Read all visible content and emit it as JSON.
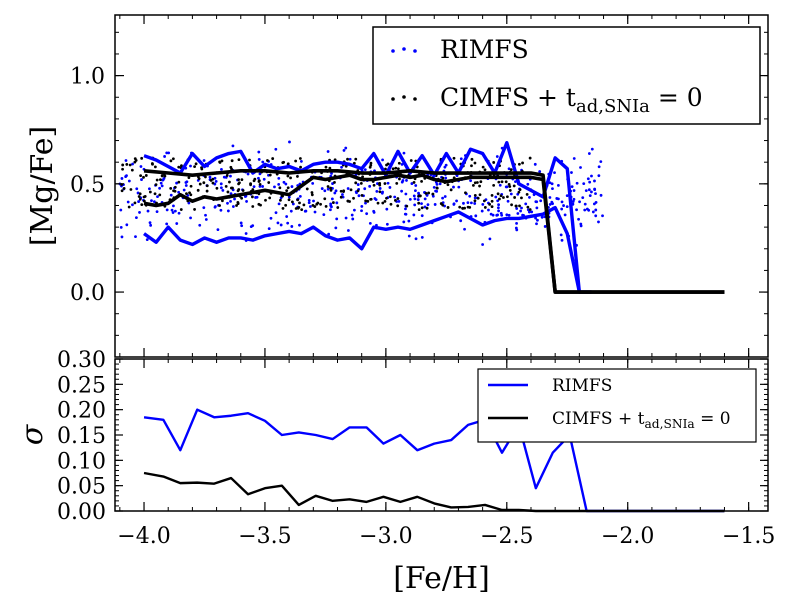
{
  "chart_data": [
    {
      "id": "top",
      "type": "line+scatter",
      "ylabel": "[Mg/Fe]",
      "xlim": [
        -4.12,
        -1.42
      ],
      "ylim": [
        -0.3,
        1.28
      ],
      "yticks": [
        0.0,
        0.5,
        1.0
      ],
      "ytick_labels": [
        "0.0",
        "0.5",
        "1.0"
      ],
      "legend": {
        "position": "top-right",
        "entries": [
          {
            "label": "RIMFS",
            "marker": "dots",
            "color": "#0000ff"
          },
          {
            "label_main": "CIMFS + t",
            "label_sub": "ad,SNIa",
            "label_tail": " = 0",
            "marker": "dots",
            "color": "#000000"
          }
        ]
      },
      "series": [
        {
          "name": "RIMFS upper",
          "color": "#0000ff",
          "x": [
            -4.0,
            -3.95,
            -3.9,
            -3.85,
            -3.8,
            -3.75,
            -3.7,
            -3.65,
            -3.6,
            -3.55,
            -3.5,
            -3.45,
            -3.4,
            -3.35,
            -3.3,
            -3.25,
            -3.2,
            -3.15,
            -3.1,
            -3.05,
            -3.0,
            -2.95,
            -2.9,
            -2.85,
            -2.8,
            -2.75,
            -2.7,
            -2.65,
            -2.6,
            -2.55,
            -2.5,
            -2.45,
            -2.4,
            -2.35,
            -2.3,
            -2.25,
            -2.2,
            -2.15
          ],
          "y": [
            0.63,
            0.61,
            0.58,
            0.55,
            0.64,
            0.58,
            0.62,
            0.64,
            0.65,
            0.55,
            0.59,
            0.57,
            0.58,
            0.56,
            0.59,
            0.6,
            0.6,
            0.59,
            0.57,
            0.64,
            0.54,
            0.65,
            0.55,
            0.63,
            0.54,
            0.64,
            0.55,
            0.66,
            0.64,
            0.55,
            0.69,
            0.5,
            0.47,
            0.44,
            0.62,
            0.57,
            0.0,
            0.0
          ]
        },
        {
          "name": "RIMFS lower",
          "color": "#0000ff",
          "x": [
            -4.0,
            -3.95,
            -3.9,
            -3.85,
            -3.8,
            -3.75,
            -3.7,
            -3.65,
            -3.6,
            -3.55,
            -3.5,
            -3.45,
            -3.4,
            -3.35,
            -3.3,
            -3.25,
            -3.2,
            -3.15,
            -3.1,
            -3.05,
            -3.0,
            -2.95,
            -2.9,
            -2.85,
            -2.8,
            -2.75,
            -2.7,
            -2.65,
            -2.6,
            -2.55,
            -2.5,
            -2.45,
            -2.4,
            -2.35,
            -2.3,
            -2.25,
            -2.2,
            -2.15
          ],
          "y": [
            0.27,
            0.23,
            0.3,
            0.24,
            0.22,
            0.25,
            0.23,
            0.25,
            0.25,
            0.24,
            0.26,
            0.27,
            0.28,
            0.27,
            0.3,
            0.26,
            0.24,
            0.25,
            0.2,
            0.3,
            0.29,
            0.3,
            0.29,
            0.31,
            0.33,
            0.35,
            0.37,
            0.34,
            0.31,
            0.33,
            0.34,
            0.34,
            0.35,
            0.36,
            0.39,
            0.27,
            0.0,
            0.0
          ]
        },
        {
          "name": "CIMFS upper",
          "color": "#000000",
          "x": [
            -4.0,
            -3.9,
            -3.8,
            -3.7,
            -3.6,
            -3.5,
            -3.4,
            -3.3,
            -3.2,
            -3.1,
            -3.0,
            -2.9,
            -2.8,
            -2.7,
            -2.6,
            -2.5,
            -2.4,
            -2.35,
            -2.3,
            -2.2,
            -2.1,
            -2.0,
            -1.9,
            -1.8,
            -1.7,
            -1.6
          ],
          "y": [
            0.56,
            0.55,
            0.54,
            0.55,
            0.56,
            0.56,
            0.55,
            0.56,
            0.56,
            0.55,
            0.55,
            0.56,
            0.55,
            0.55,
            0.55,
            0.55,
            0.55,
            0.54,
            0.0,
            0.0,
            0.0,
            0.0,
            0.0,
            0.0,
            0.0,
            0.0
          ]
        },
        {
          "name": "CIMFS lower",
          "color": "#000000",
          "x": [
            -4.0,
            -3.95,
            -3.9,
            -3.85,
            -3.8,
            -3.75,
            -3.7,
            -3.65,
            -3.6,
            -3.55,
            -3.5,
            -3.45,
            -3.4,
            -3.35,
            -3.3,
            -3.25,
            -3.2,
            -3.15,
            -3.1,
            -3.05,
            -3.0,
            -2.95,
            -2.9,
            -2.85,
            -2.8,
            -2.75,
            -2.7,
            -2.65,
            -2.6,
            -2.55,
            -2.5,
            -2.45,
            -2.4,
            -2.35,
            -2.3,
            -2.2,
            -2.1,
            -2.0,
            -1.9,
            -1.8,
            -1.7,
            -1.6
          ],
          "y": [
            0.41,
            0.4,
            0.41,
            0.45,
            0.42,
            0.44,
            0.43,
            0.44,
            0.45,
            0.46,
            0.47,
            0.46,
            0.45,
            0.49,
            0.53,
            0.52,
            0.53,
            0.54,
            0.52,
            0.52,
            0.53,
            0.54,
            0.53,
            0.54,
            0.52,
            0.51,
            0.52,
            0.53,
            0.53,
            0.53,
            0.53,
            0.53,
            0.53,
            0.52,
            0.0,
            0.0,
            0.0,
            0.0,
            0.0,
            0.0,
            0.0,
            0.0
          ]
        }
      ],
      "scatter": [
        {
          "name": "RIMFS",
          "color": "#0000ff",
          "count": 520,
          "x_range": [
            -4.1,
            -2.1
          ],
          "y_center": 0.45,
          "y_spread": 0.28
        },
        {
          "name": "CIMFS + t_ad,SNIa = 0",
          "color": "#000000",
          "count": 380,
          "x_range": [
            -4.1,
            -2.4
          ],
          "y_center": 0.5,
          "y_spread": 0.1
        }
      ]
    },
    {
      "id": "bottom",
      "type": "line",
      "xlabel": "[Fe/H]",
      "ylabel": "σ",
      "xlim": [
        -4.12,
        -1.42
      ],
      "ylim": [
        0.0,
        0.3
      ],
      "yticks": [
        0.0,
        0.05,
        0.1,
        0.15,
        0.2,
        0.25,
        0.3
      ],
      "ytick_labels": [
        "0.00",
        "0.05",
        "0.10",
        "0.15",
        "0.20",
        "0.25",
        "0.30"
      ],
      "xticks": [
        -4.0,
        -3.5,
        -3.0,
        -2.5,
        -2.0,
        -1.5
      ],
      "xtick_labels": [
        "−4.0",
        "−3.5",
        "−3.0",
        "−2.5",
        "−2.0",
        "−1.5"
      ],
      "legend": {
        "position": "top-right",
        "entries": [
          {
            "label": "RIMFS",
            "marker": "line",
            "color": "#0000ff"
          },
          {
            "label_main": "CIMFS + t",
            "label_sub": "ad,SNIa",
            "label_tail": " = 0",
            "marker": "line",
            "color": "#000000"
          }
        ]
      },
      "series": [
        {
          "name": "RIMFS",
          "color": "#0000ff",
          "x": [
            -4.0,
            -3.92,
            -3.85,
            -3.78,
            -3.71,
            -3.64,
            -3.57,
            -3.5,
            -3.43,
            -3.36,
            -3.29,
            -3.22,
            -3.15,
            -3.08,
            -3.01,
            -2.94,
            -2.87,
            -2.8,
            -2.73,
            -2.66,
            -2.59,
            -2.52,
            -2.45,
            -2.38,
            -2.31,
            -2.24,
            -2.17,
            -2.12,
            -2.1,
            -2.0,
            -1.9,
            -1.8,
            -1.7,
            -1.6
          ],
          "y": [
            0.185,
            0.18,
            0.12,
            0.2,
            0.185,
            0.188,
            0.193,
            0.178,
            0.15,
            0.155,
            0.15,
            0.142,
            0.165,
            0.165,
            0.133,
            0.15,
            0.12,
            0.133,
            0.14,
            0.17,
            0.18,
            0.115,
            0.17,
            0.045,
            0.115,
            0.15,
            0.0,
            0.0,
            0.0,
            0.0,
            0.0,
            0.0,
            0.0,
            0.0
          ]
        },
        {
          "name": "CIMFS + t_ad,SNIa = 0",
          "color": "#000000",
          "x": [
            -4.0,
            -3.92,
            -3.85,
            -3.78,
            -3.71,
            -3.64,
            -3.57,
            -3.5,
            -3.43,
            -3.36,
            -3.29,
            -3.22,
            -3.15,
            -3.08,
            -3.01,
            -2.94,
            -2.87,
            -2.8,
            -2.73,
            -2.66,
            -2.59,
            -2.52,
            -2.45,
            -2.38,
            -2.31,
            -2.24,
            -2.17,
            -2.1,
            -2.0,
            -1.9,
            -1.8,
            -1.7,
            -1.6
          ],
          "y": [
            0.075,
            0.068,
            0.055,
            0.056,
            0.054,
            0.065,
            0.033,
            0.045,
            0.05,
            0.012,
            0.03,
            0.02,
            0.023,
            0.018,
            0.028,
            0.018,
            0.028,
            0.015,
            0.007,
            0.008,
            0.012,
            0.002,
            0.002,
            0.0,
            0.0,
            0.0,
            0.0,
            0.0,
            0.0,
            0.0,
            0.0,
            0.0,
            0.0
          ]
        }
      ]
    }
  ]
}
